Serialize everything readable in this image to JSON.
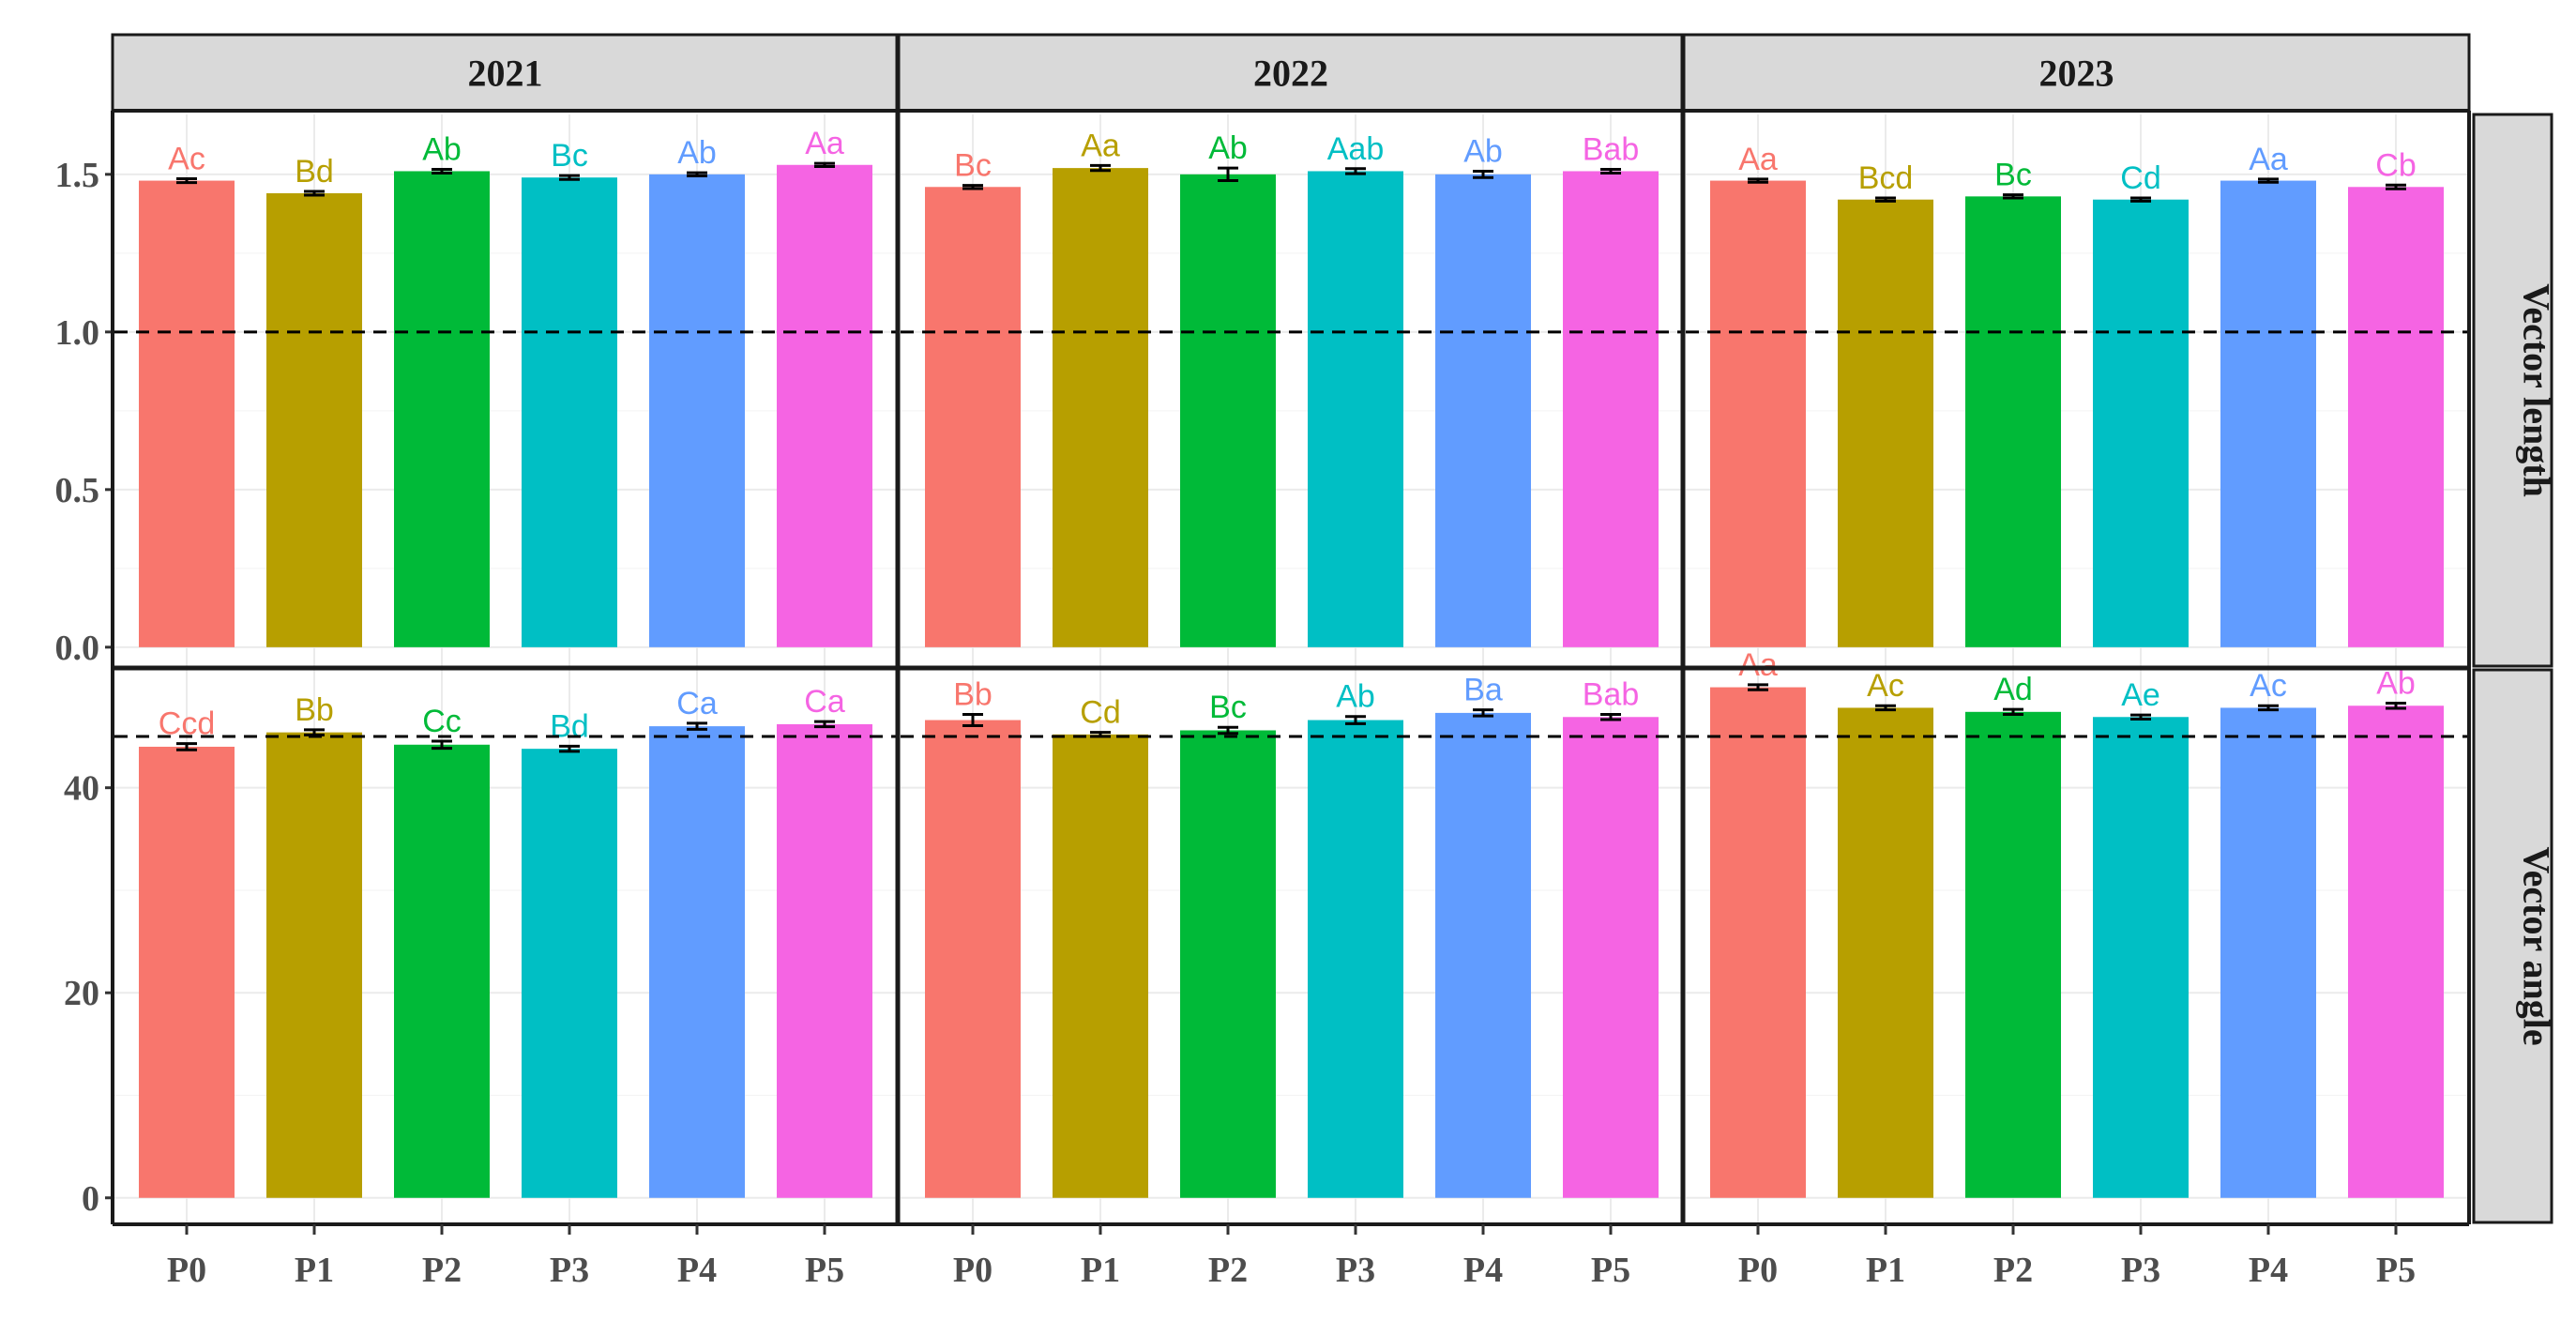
{
  "chart_data": {
    "type": "bar",
    "facet_columns": [
      "2021",
      "2022",
      "2023"
    ],
    "facet_rows": [
      "Vector length",
      "Vector angle"
    ],
    "categories": [
      "P0",
      "P1",
      "P2",
      "P3",
      "P4",
      "P5"
    ],
    "colors": [
      "#F8766D",
      "#B79F00",
      "#00BA38",
      "#00BFC4",
      "#619CFF",
      "#F564E3"
    ],
    "panels": [
      {
        "row": "Vector length",
        "yticks": [
          "0.0",
          "0.5",
          "1.0",
          "1.5"
        ],
        "ylim": [
          -0.06,
          1.69
        ],
        "reference_line": 1.0,
        "years": [
          {
            "year": "2021",
            "values": [
              1.48,
              1.44,
              1.51,
              1.49,
              1.5,
              1.53
            ],
            "errors": [
              0.006,
              0.006,
              0.006,
              0.006,
              0.005,
              0.005
            ],
            "labels": [
              "Ac",
              "Bd",
              "Ab",
              "Bc",
              "Ab",
              "Aa"
            ]
          },
          {
            "year": "2022",
            "values": [
              1.46,
              1.52,
              1.5,
              1.51,
              1.5,
              1.51
            ],
            "errors": [
              0.005,
              0.008,
              0.02,
              0.008,
              0.01,
              0.006
            ],
            "labels": [
              "Bc",
              "Aa",
              "Ab",
              "Aab",
              "Ab",
              "Bab"
            ]
          },
          {
            "year": "2023",
            "values": [
              1.48,
              1.42,
              1.43,
              1.42,
              1.48,
              1.46
            ],
            "errors": [
              0.005,
              0.005,
              0.005,
              0.005,
              0.005,
              0.006
            ],
            "labels": [
              "Aa",
              "Bcd",
              "Bc",
              "Cd",
              "Aa",
              "Cb"
            ]
          }
        ]
      },
      {
        "row": "Vector angle",
        "yticks": [
          "0",
          "20",
          "40"
        ],
        "ylim": [
          -2.4,
          51.5
        ],
        "reference_line": 45,
        "years": [
          {
            "year": "2021",
            "values": [
              44.0,
              45.4,
              44.2,
              43.8,
              46.0,
              46.2
            ],
            "errors": [
              0.3,
              0.25,
              0.35,
              0.25,
              0.3,
              0.25
            ],
            "labels": [
              "Ccd",
              "Bb",
              "Cc",
              "Bd",
              "Ca",
              "Ca"
            ]
          },
          {
            "year": "2022",
            "values": [
              46.6,
              45.2,
              45.6,
              46.6,
              47.3,
              46.9
            ],
            "errors": [
              0.55,
              0.2,
              0.3,
              0.35,
              0.3,
              0.25
            ],
            "labels": [
              "Bb",
              "Cd",
              "Bc",
              "Ab",
              "Ba",
              "Bab"
            ]
          },
          {
            "year": "2023",
            "values": [
              49.8,
              47.8,
              47.4,
              46.9,
              47.8,
              48.0
            ],
            "errors": [
              0.25,
              0.2,
              0.25,
              0.2,
              0.2,
              0.25
            ],
            "labels": [
              "Aa",
              "Ac",
              "Ad",
              "Ae",
              "Ac",
              "Ab"
            ]
          }
        ]
      }
    ],
    "grid": true,
    "legend": "none"
  }
}
